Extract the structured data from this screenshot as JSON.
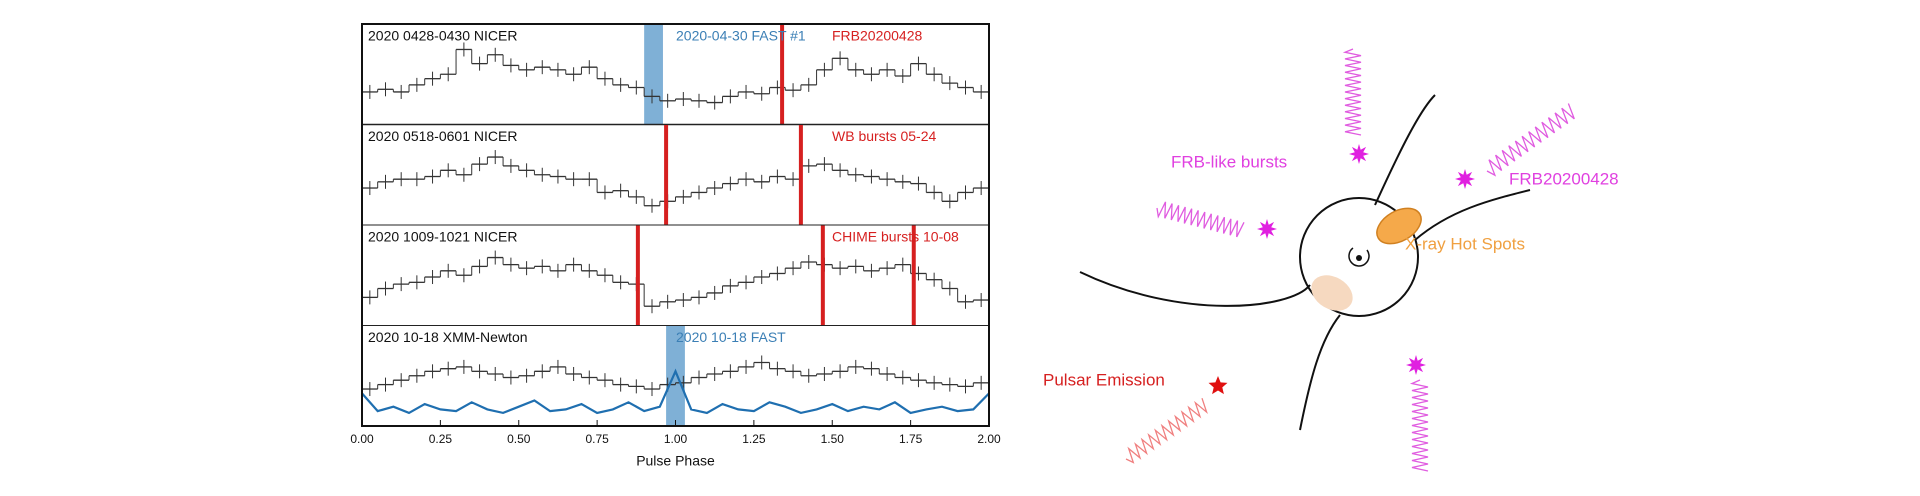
{
  "chart_data": {
    "type": "histogram",
    "xlabel": "Pulse Phase",
    "xlim": [
      0,
      2
    ],
    "xticks": [
      {
        "value": 0,
        "label": "0.00"
      },
      {
        "value": 0.25,
        "label": "0.25"
      },
      {
        "value": 0.5,
        "label": "0.50"
      },
      {
        "value": 0.75,
        "label": "0.75"
      },
      {
        "value": 1,
        "label": "1.00"
      },
      {
        "value": 1.25,
        "label": "1.25"
      },
      {
        "value": 1.5,
        "label": "1.50"
      },
      {
        "value": 1.75,
        "label": "1.75"
      },
      {
        "value": 2,
        "label": "2.00"
      }
    ],
    "bins": [
      0,
      0.05,
      0.1,
      0.15,
      0.2,
      0.25,
      0.3,
      0.35,
      0.4,
      0.45,
      0.5,
      0.55,
      0.6,
      0.65,
      0.7,
      0.75,
      0.8,
      0.85,
      0.9,
      0.95,
      1,
      1.05,
      1.1,
      1.15,
      1.2,
      1.25,
      1.3,
      1.35,
      1.4,
      1.45,
      1.5,
      1.55,
      1.6,
      1.65,
      1.7,
      1.75,
      1.8,
      1.85,
      1.9,
      1.95,
      2
    ],
    "ylim": [
      0,
      1
    ],
    "color": "#333333",
    "panels": [
      {
        "label": "2020 0428-0430 NICER",
        "annotations": [
          {
            "text": "2020-04-30 FAST #1",
            "color": "#3b7fb5"
          },
          {
            "text": "FRB20200428",
            "color": "#d62020"
          }
        ],
        "values": [
          0.3,
          0.33,
          0.3,
          0.38,
          0.45,
          0.5,
          0.78,
          0.62,
          0.72,
          0.6,
          0.55,
          0.58,
          0.55,
          0.5,
          0.58,
          0.45,
          0.38,
          0.35,
          0.25,
          0.2,
          0.22,
          0.2,
          0.18,
          0.25,
          0.3,
          0.28,
          0.35,
          0.32,
          0.38,
          0.55,
          0.68,
          0.55,
          0.5,
          0.55,
          0.48,
          0.62,
          0.5,
          0.4,
          0.35,
          0.3
        ],
        "bursts": [
          1.34
        ],
        "burst_color": "#d62020",
        "bands": [
          [
            0.9,
            0.96
          ]
        ],
        "band_color": "#7fb0d6"
      },
      {
        "label": "2020 0518-0601 NICER",
        "annotations": [
          {
            "text": "WB bursts 05-24",
            "color": "#d62020"
          }
        ],
        "values": [
          0.35,
          0.42,
          0.45,
          0.45,
          0.48,
          0.55,
          0.5,
          0.62,
          0.7,
          0.6,
          0.55,
          0.5,
          0.48,
          0.45,
          0.45,
          0.3,
          0.32,
          0.25,
          0.15,
          0.2,
          0.25,
          0.3,
          0.35,
          0.4,
          0.45,
          0.42,
          0.48,
          0.45,
          0.6,
          0.62,
          0.55,
          0.5,
          0.48,
          0.45,
          0.42,
          0.4,
          0.3,
          0.2,
          0.3,
          0.35
        ],
        "bursts": [
          0.97,
          1.4
        ],
        "burst_color": "#d62020"
      },
      {
        "label": "2020 1009-1021 NICER",
        "annotations": [
          {
            "text": "CHIME bursts 10-08",
            "color": "#d62020"
          }
        ],
        "values": [
          0.25,
          0.35,
          0.4,
          0.42,
          0.48,
          0.55,
          0.5,
          0.6,
          0.7,
          0.62,
          0.58,
          0.6,
          0.55,
          0.62,
          0.55,
          0.5,
          0.42,
          0.4,
          0.15,
          0.2,
          0.22,
          0.25,
          0.3,
          0.38,
          0.42,
          0.48,
          0.52,
          0.58,
          0.65,
          0.62,
          0.58,
          0.6,
          0.55,
          0.58,
          0.62,
          0.52,
          0.45,
          0.35,
          0.2,
          0.22
        ],
        "bursts": [
          0.88,
          1.47,
          1.76
        ],
        "burst_color": "#d62020"
      },
      {
        "label": "2020 10-18 XMM-Newton",
        "annotations": [
          {
            "text": "2020 10-18 FAST",
            "color": "#3b7fb5"
          }
        ],
        "values": [
          0.35,
          0.4,
          0.45,
          0.5,
          0.55,
          0.58,
          0.6,
          0.55,
          0.52,
          0.48,
          0.5,
          0.55,
          0.6,
          0.52,
          0.48,
          0.45,
          0.4,
          0.38,
          0.35,
          0.4,
          0.42,
          0.48,
          0.52,
          0.55,
          0.6,
          0.65,
          0.58,
          0.55,
          0.5,
          0.52,
          0.55,
          0.6,
          0.58,
          0.52,
          0.48,
          0.45,
          0.42,
          0.4,
          0.38,
          0.42
        ],
        "bands": [
          [
            0.97,
            1.03
          ]
        ],
        "band_color": "#7fb0d6",
        "line": {
          "color": "#1f6fb0",
          "values": [
            0.3,
            0.1,
            0.15,
            0.08,
            0.18,
            0.12,
            0.1,
            0.2,
            0.12,
            0.08,
            0.15,
            0.22,
            0.1,
            0.12,
            0.18,
            0.08,
            0.12,
            0.2,
            0.1,
            0.15,
            0.55,
            0.12,
            0.08,
            0.18,
            0.12,
            0.1,
            0.2,
            0.15,
            0.08,
            0.12,
            0.18,
            0.1,
            0.15,
            0.12,
            0.2,
            0.08,
            0.12,
            0.15,
            0.1,
            0.12,
            0.3
          ]
        }
      }
    ]
  },
  "diagram": {
    "labels": [
      {
        "text": "FRB-like bursts",
        "color": "#e040e0"
      },
      {
        "text": "FRB20200428",
        "color": "#e040e0"
      },
      {
        "text": "X-ray Hot Spots",
        "color": "#f0a040"
      },
      {
        "text": "Pulsar Emission",
        "color": "#d62020"
      }
    ]
  }
}
